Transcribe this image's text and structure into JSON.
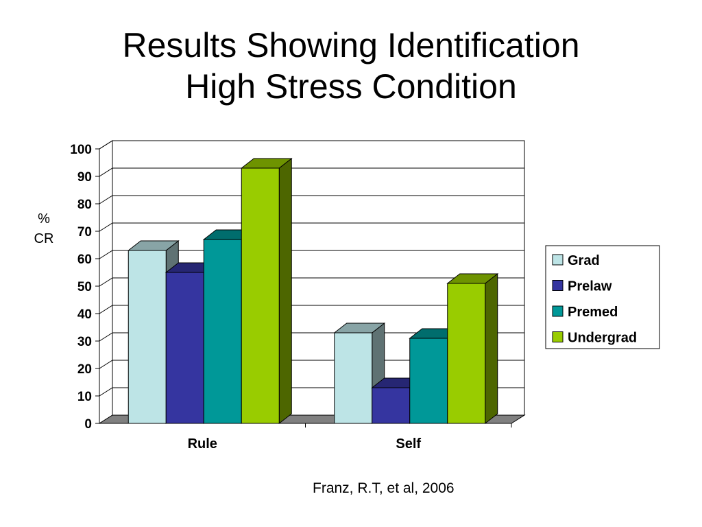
{
  "slide": {
    "title_line1": "Results Showing Identification",
    "title_line2": "High Stress Condition",
    "source": "Franz, R.T, et al, 2006"
  },
  "chart_data": {
    "type": "bar",
    "style": "3d-clustered-column",
    "categories": [
      "Rule",
      "Self"
    ],
    "series": [
      {
        "name": "Grad",
        "values": [
          63,
          33
        ],
        "color": "#bde4e6"
      },
      {
        "name": "Prelaw",
        "values": [
          55,
          13
        ],
        "color": "#3535a0"
      },
      {
        "name": "Premed",
        "values": [
          67,
          31
        ],
        "color": "#009898"
      },
      {
        "name": "Undergrad",
        "values": [
          93,
          51
        ],
        "color": "#99cc00"
      }
    ],
    "ylabel": "% CR",
    "ylabel_lines": [
      "%",
      "CR"
    ],
    "ylim": [
      0,
      100
    ],
    "yticks": [
      0,
      10,
      20,
      30,
      40,
      50,
      60,
      70,
      80,
      90,
      100
    ],
    "grid": true,
    "legend": "right"
  }
}
